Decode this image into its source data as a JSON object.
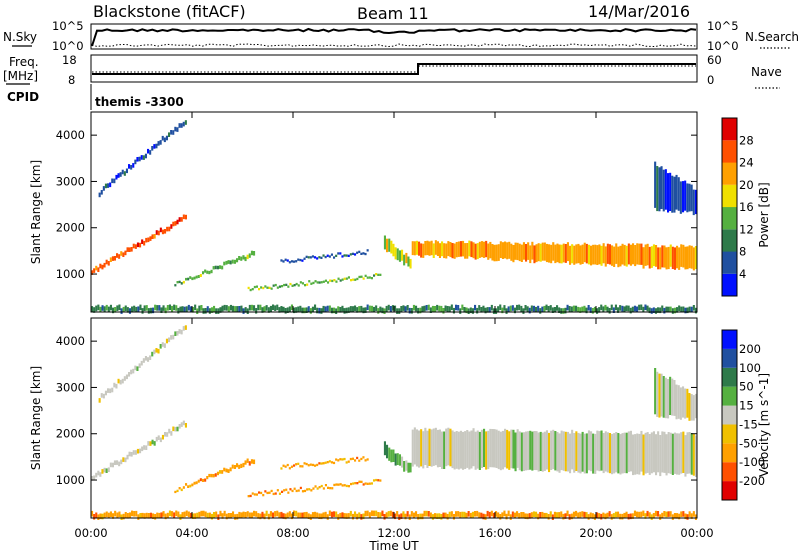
{
  "header": {
    "station": "Blackstone (fitACF)",
    "beam": "Beam 11",
    "date": "14/Mar/2016"
  },
  "top_panel_labels": {
    "nsky": "N.Sky",
    "nsky_ticks": [
      "10^5",
      "10^0"
    ],
    "nsearch": "N.Search",
    "nsearch_ticks": [
      "10^5",
      "10^0"
    ],
    "freq": "Freq.",
    "freq_unit": "[MHz]",
    "freq_ticks": [
      "18",
      "8"
    ],
    "nave": "Nave",
    "nave_ticks": [
      "60",
      "0"
    ],
    "cpid": "CPID",
    "cpid_value": "themis -3300"
  },
  "colors": {
    "power": [
      "#0010ff",
      "#2050a0",
      "#2e7a4a",
      "#55b040",
      "#f0e000",
      "#ffa000",
      "#ff5000",
      "#e00000"
    ],
    "velocity": [
      "#e00000",
      "#ff5000",
      "#ffa000",
      "#f0c000",
      "#c8c8c0",
      "#55b040",
      "#2e7a4a",
      "#2050a0",
      "#0010ff"
    ]
  },
  "chart_data": [
    {
      "type": "heatmap",
      "panel": "power",
      "ylabel": "Slant Range [km]",
      "ylim": [
        180,
        4500
      ],
      "xlim": [
        0,
        24
      ],
      "y_ticks": [
        1000,
        2000,
        3000,
        4000
      ],
      "colorbar_label": "Power [dB]",
      "colorbar_ticks": [
        "4",
        "8",
        "12",
        "16",
        "20",
        "24",
        "28"
      ],
      "bands": [
        {
          "t": [
            0.0,
            3.8
          ],
          "r0": [
            1100,
            2300
          ],
          "r1": [
            1000,
            2200
          ],
          "level": 6
        },
        {
          "t": [
            0.3,
            3.8
          ],
          "r0": [
            2800,
            4400
          ],
          "r1": [
            2700,
            4300
          ],
          "level": 1
        },
        {
          "t": [
            3.3,
            6.5
          ],
          "r0": [
            800,
            1500
          ],
          "r1": [
            750,
            1400
          ],
          "level": 3
        },
        {
          "t": [
            6.2,
            11.5
          ],
          "r0": [
            700,
            1000
          ],
          "r1": [
            650,
            950
          ],
          "level": 3
        },
        {
          "t": [
            7.5,
            11.0
          ],
          "r0": [
            1300,
            1500
          ],
          "r1": [
            1250,
            1450
          ],
          "level": 1
        },
        {
          "t": [
            11.6,
            12.7
          ],
          "r0": [
            1800,
            1300
          ],
          "r1": [
            1500,
            1100
          ],
          "level": 4
        },
        {
          "t": [
            12.7,
            24.0
          ],
          "r0": [
            1700,
            1600
          ],
          "r1": [
            1400,
            1100
          ],
          "level": 5
        },
        {
          "t": [
            22.3,
            24.0
          ],
          "r0": [
            3400,
            2800
          ],
          "r1": [
            2400,
            2300
          ],
          "level": 1
        },
        {
          "t": [
            0.0,
            24.0
          ],
          "r0": [
            300,
            300
          ],
          "r1": [
            180,
            180
          ],
          "level": 2
        }
      ]
    },
    {
      "type": "heatmap",
      "panel": "velocity",
      "xlabel": "Time UT",
      "ylabel": "Slant Range [km]",
      "ylim": [
        180,
        4500
      ],
      "xlim": [
        0,
        24
      ],
      "x_ticks": [
        "00:00",
        "04:00",
        "08:00",
        "12:00",
        "16:00",
        "20:00",
        "00:00"
      ],
      "y_ticks": [
        1000,
        2000,
        3000,
        4000
      ],
      "colorbar_label": "Velocity [m s^-1]",
      "colorbar_ticks": [
        "-200",
        "-100",
        "-50",
        "-15",
        "15",
        "50",
        "100",
        "200"
      ],
      "bands": [
        {
          "t": [
            0.0,
            3.8
          ],
          "r0": [
            1100,
            2300
          ],
          "r1": [
            1000,
            2200
          ],
          "level": 4
        },
        {
          "t": [
            0.3,
            3.8
          ],
          "r0": [
            2800,
            4400
          ],
          "r1": [
            2700,
            4300
          ],
          "level": 4
        },
        {
          "t": [
            3.3,
            6.5
          ],
          "r0": [
            800,
            1500
          ],
          "r1": [
            750,
            1400
          ],
          "level": 2
        },
        {
          "t": [
            6.2,
            11.5
          ],
          "r0": [
            700,
            1000
          ],
          "r1": [
            650,
            950
          ],
          "level": 2
        },
        {
          "t": [
            7.5,
            11.0
          ],
          "r0": [
            1300,
            1500
          ],
          "r1": [
            1250,
            1450
          ],
          "level": 2
        },
        {
          "t": [
            11.6,
            12.7
          ],
          "r0": [
            1800,
            1300
          ],
          "r1": [
            1500,
            1100
          ],
          "level": 5
        },
        {
          "t": [
            12.7,
            24.0
          ],
          "r0": [
            2100,
            2000
          ],
          "r1": [
            1300,
            1100
          ],
          "level": 4
        },
        {
          "t": [
            22.3,
            24.0
          ],
          "r0": [
            3400,
            2800
          ],
          "r1": [
            2400,
            2300
          ],
          "level": 4
        },
        {
          "t": [
            0.0,
            24.0
          ],
          "r0": [
            300,
            300
          ],
          "r1": [
            180,
            180
          ],
          "level": 2
        }
      ]
    }
  ]
}
